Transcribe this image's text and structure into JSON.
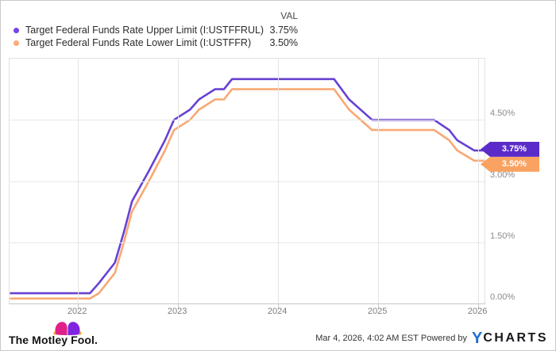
{
  "legend": {
    "val_header": "VAL",
    "series": [
      {
        "label": "Target Federal Funds Rate Upper Limit (I:USTFFRUL)",
        "value": "3.75%"
      },
      {
        "label": "Target Federal Funds Rate Lower Limit (I:USTFFR)",
        "value": "3.50%"
      }
    ]
  },
  "footer": {
    "brand": "The Motley Fool.",
    "timestamp": "Mar 4, 2026, 4:02 AM EST",
    "powered_by": "Powered by",
    "ycharts_y": "Y",
    "ycharts_rest": "CHARTS"
  },
  "chart_data": {
    "type": "line",
    "title": "",
    "xlabel": "",
    "ylabel": "",
    "grid": true,
    "legend_position": "top-left",
    "x_ticks": [
      "2022",
      "2023",
      "2024",
      "2025",
      "2026"
    ],
    "x_tick_values": [
      2022,
      2023,
      2024,
      2025,
      2026
    ],
    "x_range": [
      2021.317,
      2026.063
    ],
    "y_ticks": [
      {
        "label": "0.00%",
        "value": 0
      },
      {
        "label": "1.50%",
        "value": 1.5
      },
      {
        "label": "3.00%",
        "value": 3
      },
      {
        "label": "4.50%",
        "value": 4.5
      }
    ],
    "y_range": [
      0,
      6
    ],
    "series": [
      {
        "name": "Target Federal Funds Rate Upper Limit (I:USTFFRUL)",
        "end_label": "3.75%",
        "color": "#6741d3",
        "tag_color": "#5a2bc8",
        "dot_color": "#7444e8",
        "points": [
          [
            2021.32,
            0.25
          ],
          [
            2022.12,
            0.25
          ],
          [
            2022.21,
            0.5
          ],
          [
            2022.37,
            1.0
          ],
          [
            2022.46,
            1.75
          ],
          [
            2022.54,
            2.5
          ],
          [
            2022.71,
            3.25
          ],
          [
            2022.87,
            4.0
          ],
          [
            2022.96,
            4.5
          ],
          [
            2023.12,
            4.75
          ],
          [
            2023.21,
            5.0
          ],
          [
            2023.37,
            5.25
          ],
          [
            2023.46,
            5.25
          ],
          [
            2023.54,
            5.5
          ],
          [
            2024.56,
            5.5
          ],
          [
            2024.71,
            5.0
          ],
          [
            2024.94,
            4.5
          ],
          [
            2025.56,
            4.5
          ],
          [
            2025.71,
            4.25
          ],
          [
            2025.79,
            4.0
          ],
          [
            2025.96,
            3.75
          ],
          [
            2026.06,
            3.75
          ]
        ]
      },
      {
        "name": "Target Federal Funds Rate Lower Limit (I:USTFFR)",
        "end_label": "3.50%",
        "color": "#f9a873",
        "tag_color": "#f9a262",
        "dot_color": "#ffa877",
        "points": [
          [
            2021.32,
            0.12
          ],
          [
            2022.12,
            0.12
          ],
          [
            2022.21,
            0.25
          ],
          [
            2022.37,
            0.75
          ],
          [
            2022.46,
            1.5
          ],
          [
            2022.54,
            2.25
          ],
          [
            2022.71,
            3.0
          ],
          [
            2022.87,
            3.75
          ],
          [
            2022.96,
            4.25
          ],
          [
            2023.12,
            4.5
          ],
          [
            2023.21,
            4.75
          ],
          [
            2023.37,
            5.0
          ],
          [
            2023.46,
            5.0
          ],
          [
            2023.54,
            5.25
          ],
          [
            2024.56,
            5.25
          ],
          [
            2024.71,
            4.75
          ],
          [
            2024.94,
            4.25
          ],
          [
            2025.56,
            4.25
          ],
          [
            2025.71,
            4.0
          ],
          [
            2025.79,
            3.75
          ],
          [
            2025.96,
            3.5
          ],
          [
            2026.06,
            3.5
          ]
        ]
      }
    ]
  }
}
